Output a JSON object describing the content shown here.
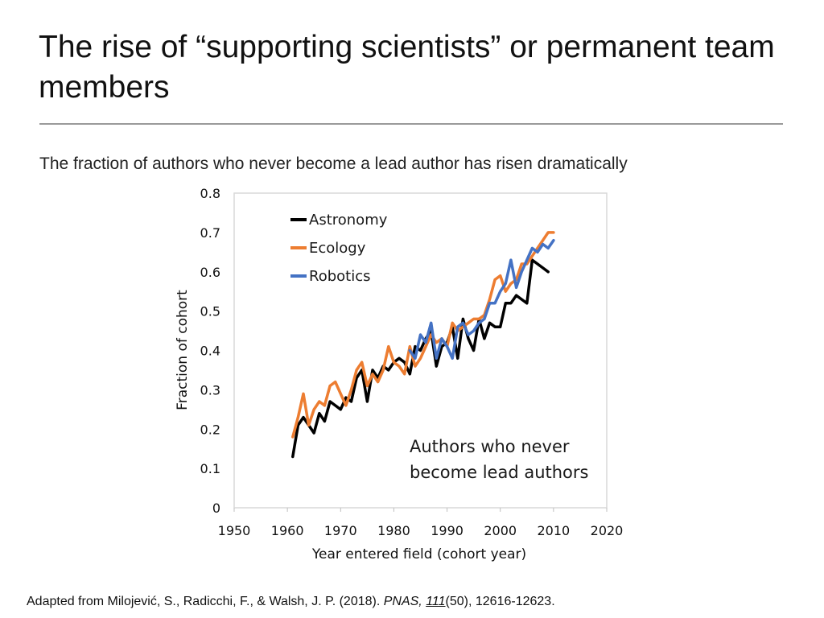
{
  "slide": {
    "title": "The rise of “supporting scientists” or permanent team members",
    "subtitle": "The fraction of authors who never become a lead author has risen dramatically"
  },
  "citation": {
    "text_before": "Adapted from Milojević, S., Radicchi, F., & Walsh, J. P.  (2018). ",
    "journal": "PNAS,",
    "space": " ",
    "volume": "111",
    "text_after": "(50), 12616-12623."
  },
  "chart_data": {
    "type": "line",
    "xlabel": "Year entered field (cohort year)",
    "ylabel": "Fraction of cohort",
    "xlim": [
      1950,
      2020
    ],
    "ylim": [
      0,
      0.8
    ],
    "xticks": [
      "1950",
      "1960",
      "1970",
      "1980",
      "1990",
      "2000",
      "2010",
      "2020"
    ],
    "yticks": [
      "0",
      "0.1",
      "0.2",
      "0.3",
      "0.4",
      "0.5",
      "0.6",
      "0.7",
      "0.8"
    ],
    "legend_position": "top-left",
    "annotation": [
      "Authors who never",
      "become lead authors"
    ],
    "series": [
      {
        "name": "Astronomy",
        "color": "#000000",
        "x": [
          1961,
          1962,
          1963,
          1964,
          1965,
          1966,
          1967,
          1968,
          1969,
          1970,
          1971,
          1972,
          1973,
          1974,
          1975,
          1976,
          1977,
          1978,
          1979,
          1980,
          1981,
          1982,
          1983,
          1984,
          1985,
          1986,
          1987,
          1988,
          1989,
          1990,
          1991,
          1992,
          1993,
          1994,
          1995,
          1996,
          1997,
          1998,
          1999,
          2000,
          2001,
          2002,
          2003,
          2004,
          2005,
          2006,
          2007,
          2008,
          2009
        ],
        "values": [
          0.13,
          0.21,
          0.23,
          0.21,
          0.19,
          0.24,
          0.22,
          0.27,
          0.26,
          0.25,
          0.28,
          0.27,
          0.33,
          0.35,
          0.27,
          0.35,
          0.33,
          0.36,
          0.35,
          0.37,
          0.38,
          0.37,
          0.34,
          0.41,
          0.4,
          0.43,
          0.45,
          0.36,
          0.41,
          0.42,
          0.46,
          0.38,
          0.48,
          0.43,
          0.4,
          0.48,
          0.43,
          0.47,
          0.46,
          0.46,
          0.52,
          0.52,
          0.54,
          0.53,
          0.52,
          0.63,
          0.62,
          0.61,
          0.6
        ]
      },
      {
        "name": "Ecology",
        "color": "#ed7d31",
        "x": [
          1961,
          1962,
          1963,
          1964,
          1965,
          1966,
          1967,
          1968,
          1969,
          1970,
          1971,
          1972,
          1973,
          1974,
          1975,
          1976,
          1977,
          1978,
          1979,
          1980,
          1981,
          1982,
          1983,
          1984,
          1985,
          1986,
          1987,
          1988,
          1989,
          1990,
          1991,
          1992,
          1993,
          1994,
          1995,
          1996,
          1997,
          1998,
          1999,
          2000,
          2001,
          2002,
          2003,
          2004,
          2005,
          2006,
          2007,
          2008,
          2009,
          2010
        ],
        "values": [
          0.18,
          0.23,
          0.29,
          0.21,
          0.25,
          0.27,
          0.26,
          0.31,
          0.32,
          0.29,
          0.26,
          0.3,
          0.35,
          0.37,
          0.31,
          0.34,
          0.32,
          0.35,
          0.41,
          0.37,
          0.36,
          0.34,
          0.41,
          0.36,
          0.38,
          0.41,
          0.44,
          0.42,
          0.43,
          0.41,
          0.47,
          0.45,
          0.46,
          0.47,
          0.48,
          0.48,
          0.49,
          0.53,
          0.58,
          0.59,
          0.55,
          0.57,
          0.58,
          0.62,
          0.62,
          0.64,
          0.66,
          0.68,
          0.7,
          0.7
        ]
      },
      {
        "name": "Robotics",
        "color": "#4472c4",
        "x": [
          1983,
          1984,
          1985,
          1986,
          1987,
          1988,
          1989,
          1990,
          1991,
          1992,
          1993,
          1994,
          1995,
          1996,
          1997,
          1998,
          1999,
          2000,
          2001,
          2002,
          2003,
          2004,
          2005,
          2006,
          2007,
          2008,
          2009,
          2010
        ],
        "values": [
          0.4,
          0.38,
          0.44,
          0.42,
          0.47,
          0.38,
          0.43,
          0.41,
          0.38,
          0.46,
          0.47,
          0.44,
          0.45,
          0.47,
          0.48,
          0.52,
          0.52,
          0.55,
          0.57,
          0.63,
          0.56,
          0.6,
          0.63,
          0.66,
          0.65,
          0.67,
          0.66,
          0.68
        ]
      }
    ]
  }
}
